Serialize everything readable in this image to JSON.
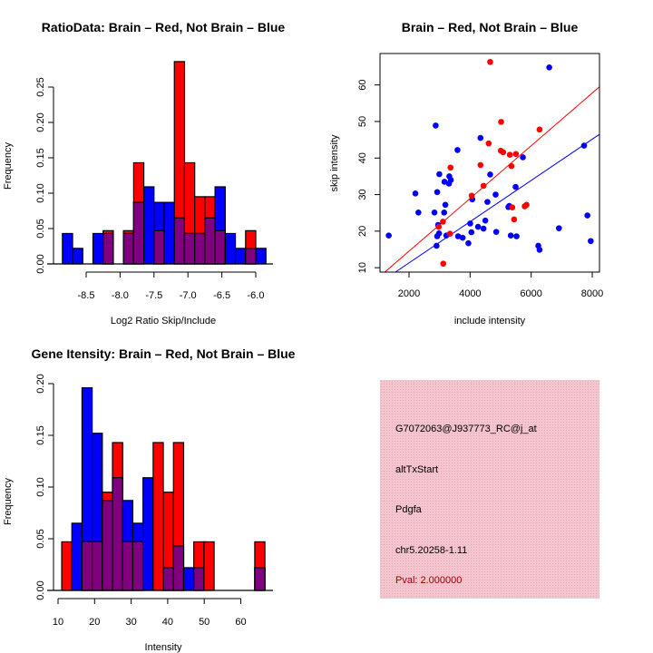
{
  "colors": {
    "red": "#ff0000",
    "blue": "#0000ff",
    "overlap": "#800080",
    "info_bg": "#f4c4cf",
    "pval": "#a00000"
  },
  "chart_data": [
    {
      "type": "bar",
      "id": "ratio",
      "title": "RatioData: Brain – Red, Not Brain – Blue",
      "xlabel": "Log2 Ratio Skip/Include",
      "ylabel": "Frequency",
      "xticks": [
        "-8.5",
        "-8.0",
        "-7.5",
        "-7.0",
        "-6.5",
        "-6.0"
      ],
      "xtick_values": [
        -8.5,
        -8.0,
        -7.5,
        -7.0,
        -6.5,
        -6.0
      ],
      "yticks": [
        "0.00",
        "0.05",
        "0.10",
        "0.15",
        "0.20",
        "0.25"
      ],
      "ytick_values": [
        0,
        0.05,
        0.1,
        0.15,
        0.2,
        0.25
      ],
      "bin_start": -8.85,
      "bin_width": 0.15,
      "series": [
        {
          "name": "Brain",
          "color": "red",
          "values": [
            0,
            0,
            0,
            0,
            0.047,
            0,
            0.047,
            0.143,
            0,
            0.047,
            0,
            0.286,
            0.143,
            0.095,
            0.095,
            0.047,
            0,
            0,
            0.047,
            0
          ]
        },
        {
          "name": "Not Brain",
          "color": "blue",
          "values": [
            0.043,
            0.022,
            0,
            0.043,
            0.043,
            0,
            0.043,
            0.087,
            0.109,
            0.087,
            0.087,
            0.065,
            0.043,
            0.043,
            0.065,
            0.109,
            0.043,
            0.022,
            0.022,
            0.022
          ]
        }
      ]
    },
    {
      "type": "scatter",
      "id": "scatter",
      "title": "Brain – Red, Not Brain – Blue",
      "xlabel": "include intensity",
      "ylabel": "skip intensity",
      "xlim": [
        1050,
        8237
      ],
      "ylim": [
        8.8,
        68.6
      ],
      "xticks": [
        "2000",
        "4000",
        "6000",
        "8000"
      ],
      "xtick_values": [
        2000,
        4000,
        6000,
        8000
      ],
      "yticks": [
        "10",
        "20",
        "30",
        "40",
        "50",
        "60"
      ],
      "ytick_values": [
        10,
        20,
        30,
        40,
        50,
        60
      ],
      "series": [
        {
          "name": "Not Brain",
          "color": "blue",
          "points": [
            [
              1336,
              18.8
            ],
            [
              2873,
              48.9
            ],
            [
              2208,
              30.3
            ],
            [
              2307,
              25.1
            ],
            [
              2833,
              25.1
            ],
            [
              2922,
              30.7
            ],
            [
              2992,
              35.6
            ],
            [
              2952,
              21.7
            ],
            [
              2982,
              19.4
            ],
            [
              2922,
              18.6
            ],
            [
              2902,
              16.0
            ],
            [
              3190,
              27.2
            ],
            [
              3150,
              25.1
            ],
            [
              3160,
              33.5
            ],
            [
              3319,
              35.0
            ],
            [
              3369,
              34.0
            ],
            [
              3309,
              33.0
            ],
            [
              3220,
              18.8
            ],
            [
              3587,
              42.2
            ],
            [
              3607,
              18.6
            ],
            [
              3755,
              18.2
            ],
            [
              3944,
              16.7
            ],
            [
              4003,
              22.1
            ],
            [
              4043,
              19.7
            ],
            [
              4073,
              28.7
            ],
            [
              4261,
              21.2
            ],
            [
              4340,
              45.5
            ],
            [
              4440,
              20.7
            ],
            [
              4499,
              22.9
            ],
            [
              4568,
              28.0
            ],
            [
              4657,
              35.5
            ],
            [
              4836,
              30.0
            ],
            [
              4856,
              19.8
            ],
            [
              5253,
              26.6
            ],
            [
              5283,
              26.9
            ],
            [
              5332,
              18.8
            ],
            [
              5491,
              32.1
            ],
            [
              5521,
              18.6
            ],
            [
              5729,
              40.2
            ],
            [
              6234,
              16.0
            ],
            [
              6274,
              14.9
            ],
            [
              6592,
              64.8
            ],
            [
              6909,
              20.8
            ],
            [
              7732,
              43.4
            ],
            [
              7841,
              24.3
            ],
            [
              7950,
              17.3
            ]
          ],
          "fit": [
            [
              1554,
              8.8
            ],
            [
              8238,
              46.5
            ]
          ]
        },
        {
          "name": "Brain",
          "color": "red",
          "points": [
            [
              4657,
              66.3
            ],
            [
              5015,
              49.9
            ],
            [
              6274,
              47.8
            ],
            [
              4608,
              44.0
            ],
            [
              5005,
              42.0
            ],
            [
              5084,
              41.6
            ],
            [
              5302,
              40.9
            ],
            [
              5501,
              41.1
            ],
            [
              5352,
              37.8
            ],
            [
              4340,
              38.1
            ],
            [
              3359,
              37.4
            ],
            [
              4440,
              32.4
            ],
            [
              4053,
              29.7
            ],
            [
              3111,
              22.6
            ],
            [
              2972,
              21.2
            ],
            [
              3339,
              19.3
            ],
            [
              3121,
              11.1
            ],
            [
              5382,
              26.5
            ],
            [
              5441,
              23.2
            ],
            [
              5788,
              26.8
            ],
            [
              5848,
              27.2
            ]
          ],
          "fit": [
            [
              1207,
              8.8
            ],
            [
              8238,
              59.5
            ]
          ]
        }
      ]
    },
    {
      "type": "bar",
      "id": "intensity",
      "title": "Gene Itensity: Brain – Red, Not Brain – Blue",
      "xlabel": "Intensity",
      "ylabel": "Frequency",
      "xticks": [
        "10",
        "20",
        "30",
        "40",
        "50",
        "60"
      ],
      "xtick_values": [
        10,
        20,
        30,
        40,
        50,
        60
      ],
      "yticks": [
        "0.00",
        "0.05",
        "0.10",
        "0.15",
        "0.20"
      ],
      "ytick_values": [
        0,
        0.05,
        0.1,
        0.15,
        0.2
      ],
      "bin_start": 11,
      "bin_width": 2.78,
      "series": [
        {
          "name": "Brain",
          "color": "red",
          "values": [
            0.047,
            0,
            0.047,
            0.047,
            0.095,
            0.143,
            0.047,
            0.047,
            0,
            0.143,
            0.095,
            0.143,
            0,
            0.047,
            0.047,
            0,
            0,
            0,
            0,
            0.047
          ]
        },
        {
          "name": "Not Brain",
          "color": "blue",
          "values": [
            0,
            0.065,
            0.196,
            0.152,
            0.087,
            0.109,
            0.087,
            0.065,
            0.109,
            0,
            0.022,
            0.043,
            0.022,
            0.022,
            0,
            0,
            0,
            0,
            0,
            0.022
          ]
        }
      ]
    }
  ],
  "info": {
    "probe": "G7072063@J937773_RC@j_at",
    "event_type": "altTxStart",
    "gene": "Pdgfa",
    "location": "chr5.20258-1.11",
    "pval": "Pval: 2.000000"
  }
}
